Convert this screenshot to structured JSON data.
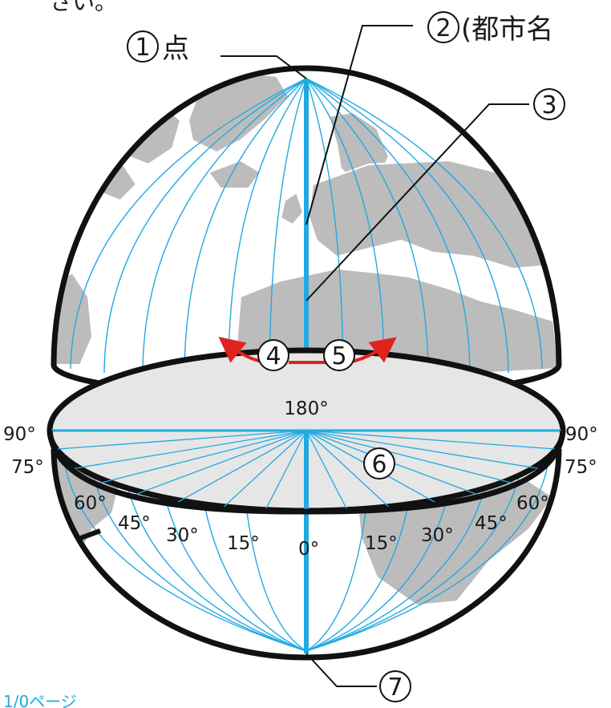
{
  "top_fragment": "さい。",
  "bottom_fragment": "1/0ページ",
  "labels": {
    "point": "点",
    "city_name": "(都市名",
    "n1": "1",
    "n2": "2",
    "n3": "3",
    "n4": "4",
    "n5": "5",
    "n6": "6",
    "n7": "7"
  },
  "degrees": {
    "d180": "180°",
    "d90_left": "90°",
    "d90_right": "90°",
    "d75_left": "75°",
    "d75_right": "75°",
    "d60_left": "60°",
    "d60_right": "60°",
    "d45_left": "45°",
    "d45_right": "45°",
    "d30_left": "30°",
    "d30_right": "30°",
    "d15_left": "15°",
    "d15_right": "15°",
    "d0": "0°"
  },
  "colors": {
    "meridian": "#22a9e1",
    "land": "#bcbcbc",
    "arrow": "#e0231e",
    "plane": "#e6e6e6",
    "outline": "#111111"
  }
}
